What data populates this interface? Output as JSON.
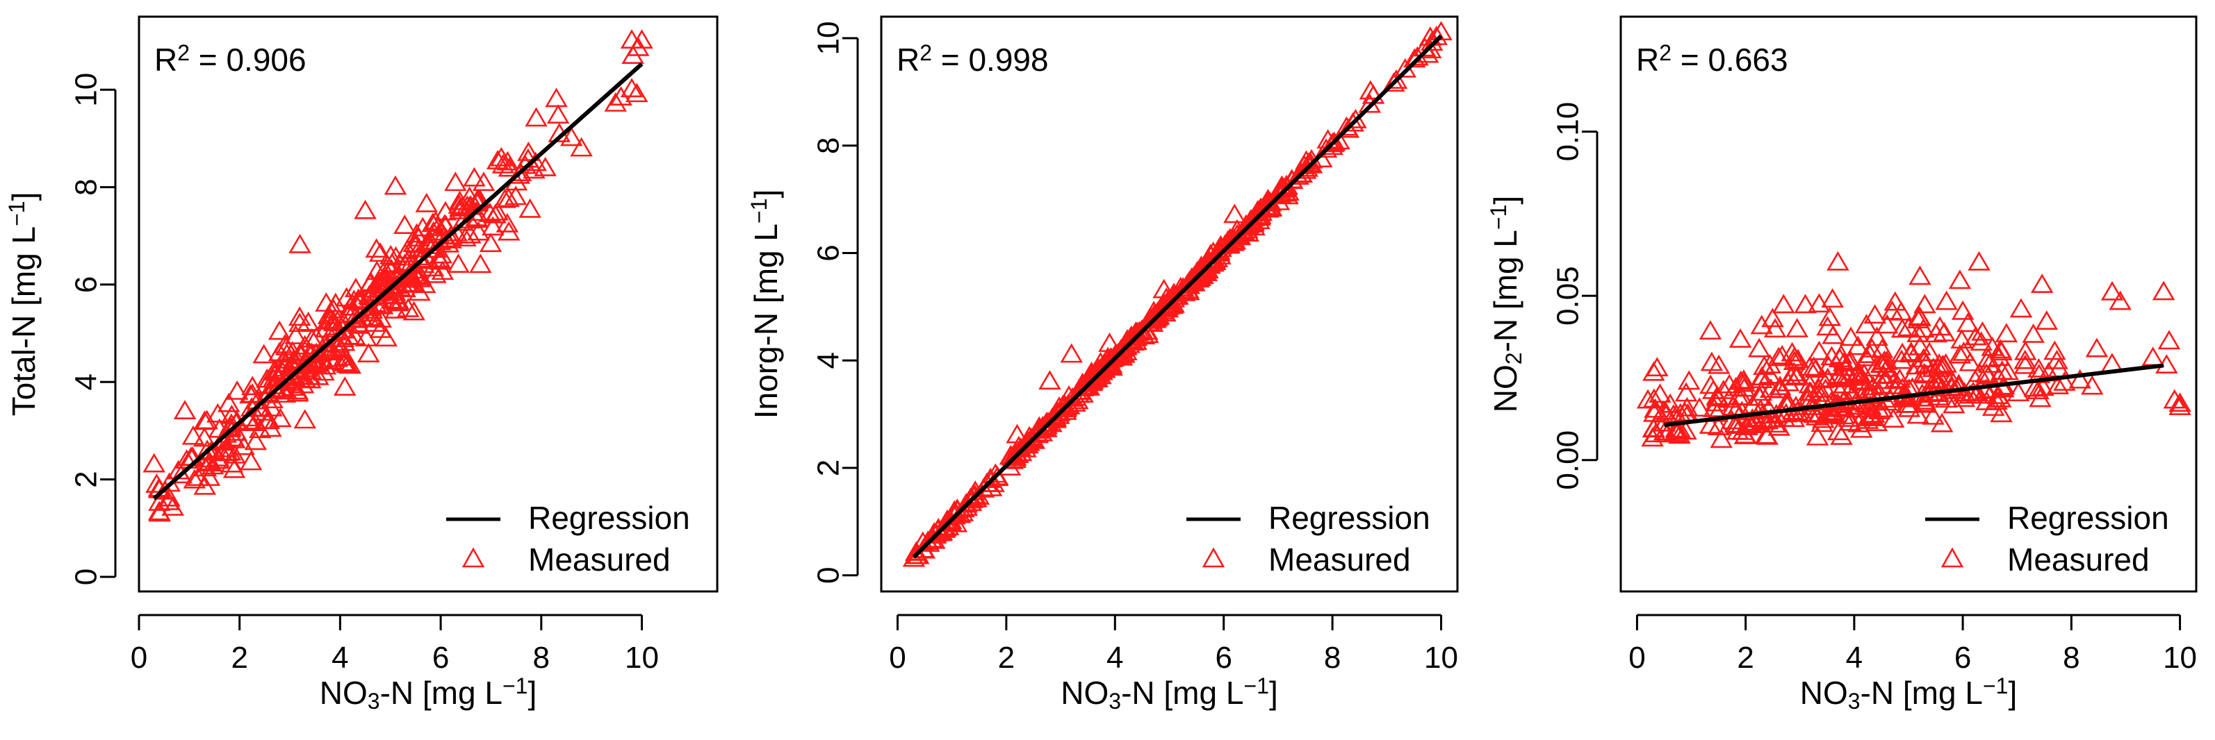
{
  "chart_data": [
    {
      "type": "scatter",
      "id": "total",
      "r2_prefix": "R",
      "r2_sup": "2",
      "r2_value": " = 0.906",
      "xlabel_main": "NO",
      "xlabel_sub": "3",
      "xlabel_rest": "-N [mg L",
      "xlabel_sup": "−1",
      "xlabel_end": "]",
      "ylabel_main": "Total-N [mg L",
      "ylabel_sup": "−1",
      "ylabel_end": "]",
      "ylabel_sub": "",
      "ylabel_rest": "",
      "xlim": [
        0,
        11.5
      ],
      "ylim": [
        -0.3,
        11.5
      ],
      "x_ticks": [
        0,
        2,
        4,
        6,
        8,
        10
      ],
      "y_ticks": [
        0,
        2,
        4,
        6,
        8,
        10
      ],
      "y_tick_labels": [
        "0",
        "2",
        "4",
        "6",
        "8",
        "10"
      ],
      "regression": {
        "slope": 0.92,
        "intercept": 1.33,
        "x_range": [
          0.3,
          10
        ]
      },
      "scatter": {
        "n": 380,
        "x_min": 0.3,
        "x_max": 10,
        "noise": 0.42,
        "center": 4.3,
        "spread": 1.9,
        "seed": 11
      },
      "extra_points": [
        [
          9.8,
          11.0
        ],
        [
          10.0,
          11.0
        ],
        [
          9.8,
          10.0
        ],
        [
          9.9,
          9.9
        ],
        [
          0.3,
          2.3
        ],
        [
          0.4,
          1.8
        ],
        [
          0.6,
          1.6
        ],
        [
          3.2,
          6.8
        ],
        [
          5.1,
          8.0
        ],
        [
          8.3,
          9.8
        ],
        [
          8.6,
          9.0
        ],
        [
          7.9,
          9.4
        ],
        [
          3.3,
          3.2
        ],
        [
          4.5,
          7.5
        ]
      ],
      "series": [
        {
          "name": "Regression",
          "kind": "line",
          "color": "#000000"
        },
        {
          "name": "Measured",
          "kind": "triangle",
          "color": "#ff1a1a"
        }
      ],
      "legend_position": "bottom-right"
    },
    {
      "type": "scatter",
      "id": "inorg",
      "r2_prefix": "R",
      "r2_sup": "2",
      "r2_value": " = 0.998",
      "xlabel_main": "NO",
      "xlabel_sub": "3",
      "xlabel_rest": "-N [mg L",
      "xlabel_sup": "−1",
      "xlabel_end": "]",
      "ylabel_main": "Inorg-N [mg L",
      "ylabel_sup": "−1",
      "ylabel_end": "]",
      "ylabel_sub": "",
      "ylabel_rest": "",
      "xlim": [
        -0.3,
        10.3
      ],
      "ylim": [
        -0.3,
        10.4
      ],
      "x_ticks": [
        0,
        2,
        4,
        6,
        8,
        10
      ],
      "y_ticks": [
        0,
        2,
        4,
        6,
        8,
        10
      ],
      "y_tick_labels": [
        "0",
        "2",
        "4",
        "6",
        "8",
        "10"
      ],
      "regression": {
        "slope": 1.0,
        "intercept": 0.04,
        "x_range": [
          0.3,
          10
        ]
      },
      "scatter": {
        "n": 420,
        "x_min": 0.3,
        "x_max": 10,
        "noise": 0.06,
        "center": 4.6,
        "spread": 2.2,
        "seed": 23
      },
      "extra_points": [
        [
          2.8,
          3.6
        ],
        [
          3.2,
          4.1
        ],
        [
          3.9,
          4.3
        ],
        [
          6.2,
          6.7
        ],
        [
          6.5,
          6.6
        ],
        [
          2.2,
          2.6
        ],
        [
          10.0,
          10.1
        ],
        [
          9.7,
          9.8
        ],
        [
          9.8,
          10.0
        ],
        [
          0.3,
          0.3
        ],
        [
          8.7,
          9.0
        ],
        [
          4.9,
          5.3
        ]
      ],
      "series": [
        {
          "name": "Regression",
          "kind": "line",
          "color": "#000000"
        },
        {
          "name": "Measured",
          "kind": "triangle",
          "color": "#ff1a1a"
        }
      ],
      "legend_position": "bottom-right"
    },
    {
      "type": "scatter",
      "id": "no2",
      "r2_prefix": "R",
      "r2_sup": "2",
      "r2_value": " = 0.663",
      "xlabel_main": "NO",
      "xlabel_sub": "3",
      "xlabel_rest": "-N [mg L",
      "xlabel_sup": "−1",
      "xlabel_end": "]",
      "ylabel_main": "NO",
      "ylabel_sub": "2",
      "ylabel_rest": "-N [mg L",
      "ylabel_sup": "−1",
      "ylabel_end": "]",
      "xlim": [
        -0.3,
        10.3
      ],
      "ylim": [
        -0.04,
        0.135
      ],
      "x_ticks": [
        0,
        2,
        4,
        6,
        8,
        10
      ],
      "y_ticks": [
        0.0,
        0.05,
        0.1
      ],
      "y_tick_labels": [
        "0.00",
        "0.05",
        "0.10"
      ],
      "regression": {
        "slope": 0.00197,
        "intercept": 0.0097,
        "x_range": [
          0.5,
          9.7
        ]
      },
      "scatter": {
        "n": 380,
        "x_min": 0.2,
        "x_max": 10,
        "noise": 0.0,
        "center": 4.2,
        "spread": 2.0,
        "seed": 37,
        "y_mode": "no2"
      },
      "extra_points": [
        [
          3.7,
          0.06
        ],
        [
          6.3,
          0.06
        ],
        [
          9.7,
          0.051
        ],
        [
          8.9,
          0.048
        ],
        [
          2.7,
          0.047
        ],
        [
          3.1,
          0.047
        ],
        [
          4.7,
          0.045
        ],
        [
          5.3,
          0.047
        ],
        [
          5.7,
          0.048
        ],
        [
          6.0,
          0.045
        ],
        [
          9.8,
          0.036
        ],
        [
          9.9,
          0.018
        ],
        [
          10.0,
          0.017
        ],
        [
          10.0,
          0.016
        ],
        [
          0.2,
          0.018
        ],
        [
          0.5,
          0.011
        ],
        [
          5.0,
          0.04
        ],
        [
          7.3,
          0.038
        ]
      ],
      "series": [
        {
          "name": "Regression",
          "kind": "line",
          "color": "#000000"
        },
        {
          "name": "Measured",
          "kind": "triangle",
          "color": "#ff1a1a"
        }
      ],
      "legend_position": "bottom-right"
    }
  ]
}
